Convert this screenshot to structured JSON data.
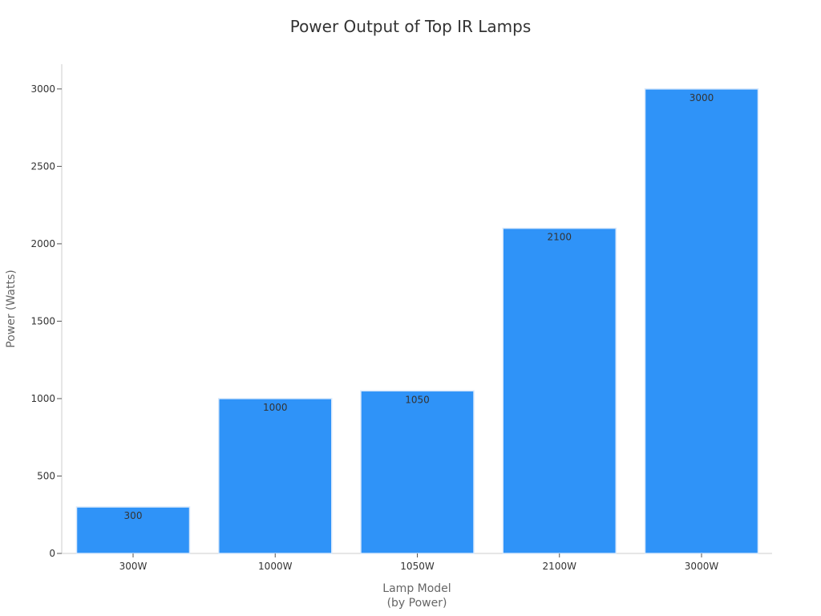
{
  "chart_data": {
    "type": "bar",
    "title": "Power Output of Top IR Lamps",
    "xlabel_lines": [
      "Lamp Model",
      "(by Power)"
    ],
    "ylabel": "Power (Watts)",
    "categories": [
      "300W",
      "1000W",
      "1050W",
      "2100W",
      "3000W"
    ],
    "values": [
      300,
      1000,
      1050,
      2100,
      3000
    ],
    "data_labels": [
      "300",
      "1000",
      "1050",
      "2100",
      "3000"
    ],
    "yticks": [
      0,
      500,
      1000,
      1500,
      2000,
      2500,
      3000
    ],
    "ylim": [
      0,
      3160
    ],
    "grid": false,
    "legend": "none",
    "colors": {
      "bar": "#2f93f8",
      "bar_edge": "#d8e8fb",
      "axis": "#cccccc",
      "text": "#333333",
      "label": "#666666"
    }
  }
}
